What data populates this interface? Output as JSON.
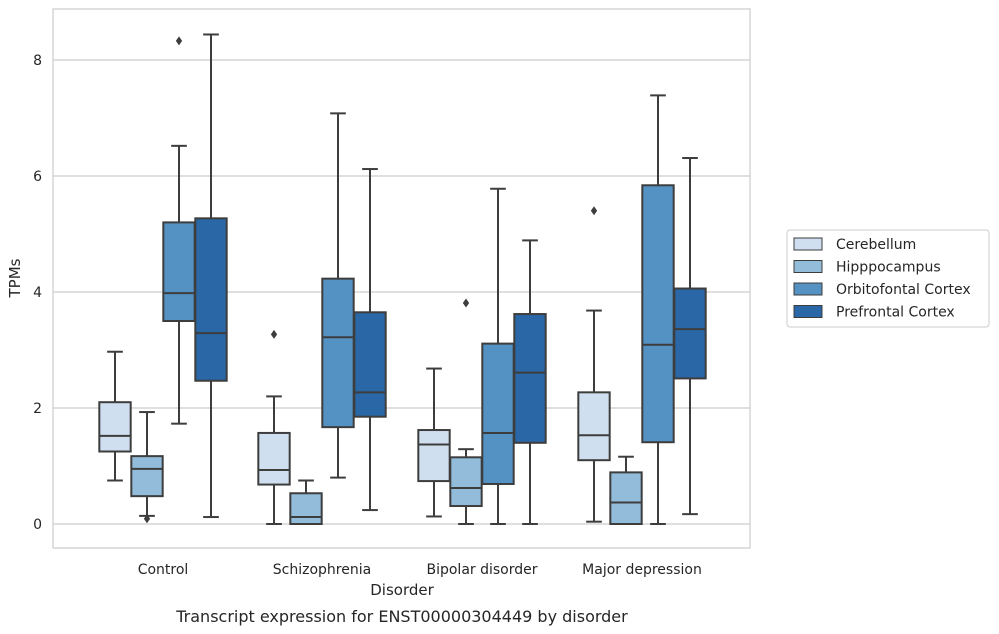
{
  "chart_data": {
    "type": "boxplot",
    "title": "",
    "caption": "Transcript expression for ENST00000304449 by disorder",
    "xlabel": "Disorder",
    "ylabel": "TPMs",
    "ylim": [
      -0.4,
      8.85
    ],
    "yticks": [
      0,
      2,
      4,
      6,
      8
    ],
    "grid": "horizontal",
    "legend_position": "right",
    "categories": [
      "Control",
      "Schizophrenia",
      "Bipolar disorder",
      "Major depression"
    ],
    "series": [
      {
        "name": "Cerebellum",
        "color": "#d0dff0",
        "boxes": [
          {
            "whislo": 0.75,
            "q1": 1.25,
            "med": 1.52,
            "q3": 2.1,
            "whishi": 2.97,
            "fliers": []
          },
          {
            "whislo": 0.0,
            "q1": 0.68,
            "med": 0.93,
            "q3": 1.57,
            "whishi": 2.2,
            "fliers": [
              3.27
            ]
          },
          {
            "whislo": 0.13,
            "q1": 0.74,
            "med": 1.37,
            "q3": 1.62,
            "whishi": 2.68,
            "fliers": []
          },
          {
            "whislo": 0.04,
            "q1": 1.1,
            "med": 1.53,
            "q3": 2.27,
            "whishi": 3.68,
            "fliers": [
              5.4
            ]
          }
        ]
      },
      {
        "name": "Hipppocampus",
        "color": "#93bcdb",
        "boxes": [
          {
            "whislo": 0.14,
            "q1": 0.48,
            "med": 0.95,
            "q3": 1.17,
            "whishi": 1.93,
            "fliers": [
              0.09
            ]
          },
          {
            "whislo": 0.0,
            "q1": 0.0,
            "med": 0.12,
            "q3": 0.53,
            "whishi": 0.75,
            "fliers": []
          },
          {
            "whislo": 0.0,
            "q1": 0.31,
            "med": 0.62,
            "q3": 1.15,
            "whishi": 1.29,
            "fliers": [
              3.81
            ]
          },
          {
            "whislo": 0.0,
            "q1": 0.0,
            "med": 0.37,
            "q3": 0.89,
            "whishi": 1.16,
            "fliers": []
          }
        ]
      },
      {
        "name": "Orbitofontal Cortex",
        "color": "#5592c4",
        "boxes": [
          {
            "whislo": 1.73,
            "q1": 3.5,
            "med": 3.98,
            "q3": 5.2,
            "whishi": 6.52,
            "fliers": [
              8.33
            ]
          },
          {
            "whislo": 0.8,
            "q1": 1.67,
            "med": 3.22,
            "q3": 4.23,
            "whishi": 7.08,
            "fliers": []
          },
          {
            "whislo": 0.0,
            "q1": 0.69,
            "med": 1.57,
            "q3": 3.11,
            "whishi": 5.78,
            "fliers": []
          },
          {
            "whislo": 0.0,
            "q1": 1.41,
            "med": 3.09,
            "q3": 5.84,
            "whishi": 7.39,
            "fliers": []
          }
        ]
      },
      {
        "name": "Prefrontal Cortex",
        "color": "#2a67a6",
        "boxes": [
          {
            "whislo": 0.12,
            "q1": 2.47,
            "med": 3.29,
            "q3": 5.27,
            "whishi": 8.44,
            "fliers": []
          },
          {
            "whislo": 0.24,
            "q1": 1.85,
            "med": 2.27,
            "q3": 3.65,
            "whishi": 6.12,
            "fliers": []
          },
          {
            "whislo": 0.0,
            "q1": 1.4,
            "med": 2.61,
            "q3": 3.62,
            "whishi": 4.89,
            "fliers": []
          },
          {
            "whislo": 0.17,
            "q1": 2.51,
            "med": 3.36,
            "q3": 4.06,
            "whishi": 6.31,
            "fliers": []
          }
        ]
      }
    ]
  }
}
